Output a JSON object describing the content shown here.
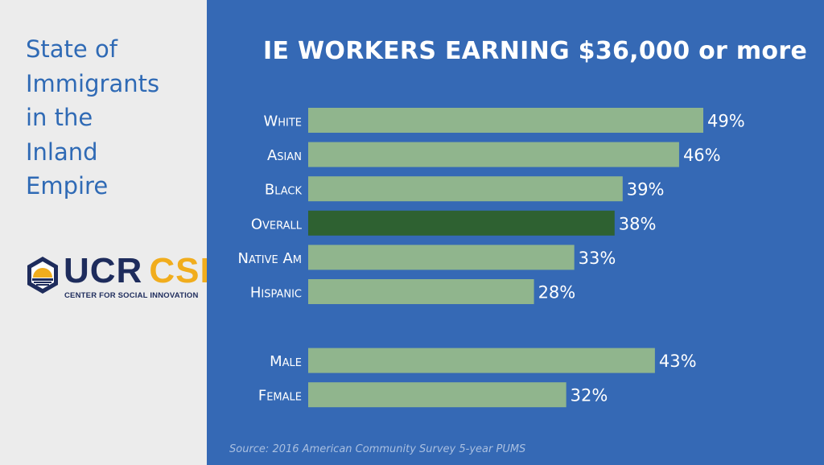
{
  "sidebar": {
    "title_lines": [
      "State of",
      "Immigrants",
      "in the",
      "Inland",
      "Empire"
    ],
    "logo": {
      "name": "UCR CSI logo",
      "ucr": "UCR",
      "csi": "CSI",
      "subtitle": "CENTER FOR SOCIAL INNOVATION",
      "colors": {
        "navy": "#1e2c5c",
        "gold": "#f1ad1d"
      }
    }
  },
  "chart_data": {
    "type": "bar",
    "orientation": "horizontal",
    "title": "IE WORKERS EARNING $36,000 or more",
    "categories": [
      "White",
      "Asian",
      "Black",
      "Overall",
      "Native Am",
      "Hispanic",
      "Male",
      "Female"
    ],
    "values": [
      49,
      46,
      39,
      38,
      33,
      28,
      43,
      32
    ],
    "value_labels": [
      "49%",
      "46%",
      "39%",
      "38%",
      "33%",
      "28%",
      "43%",
      "32%"
    ],
    "groups": [
      [
        "White",
        "Asian",
        "Black",
        "Overall",
        "Native Am",
        "Hispanic"
      ],
      [
        "Male",
        "Female"
      ]
    ],
    "highlight": "Overall",
    "xlim": [
      0,
      49
    ],
    "grid": false,
    "colors": {
      "bar": "#90b58d",
      "highlight": "#2e6131",
      "background": "#3569b5",
      "text": "#ffffff"
    }
  },
  "source": "Source: 2016 American Community Survey 5-year PUMS"
}
